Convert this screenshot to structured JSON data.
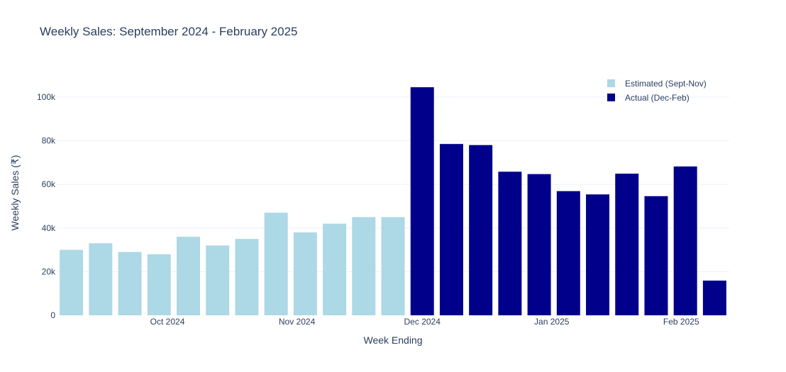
{
  "chart_data": {
    "type": "bar",
    "title": "Weekly Sales: September 2024 - February 2025",
    "xlabel": "Week Ending",
    "ylabel": "Weekly Sales (₹)",
    "ylim": [
      0,
      112000
    ],
    "y_ticks": [
      {
        "value": 0,
        "label": "0"
      },
      {
        "value": 20000,
        "label": "20k"
      },
      {
        "value": 40000,
        "label": "40k"
      },
      {
        "value": 60000,
        "label": "60k"
      },
      {
        "value": 80000,
        "label": "80k"
      },
      {
        "value": 100000,
        "label": "100k"
      }
    ],
    "x_ticks": [
      {
        "date": "2024-10-01",
        "label": "Oct 2024"
      },
      {
        "date": "2024-11-01",
        "label": "Nov 2024"
      },
      {
        "date": "2024-12-01",
        "label": "Dec 2024"
      },
      {
        "date": "2025-01-01",
        "label": "Jan 2025"
      },
      {
        "date": "2025-02-01",
        "label": "Feb 2025"
      }
    ],
    "grid": true,
    "legend_position": "top-right",
    "series": [
      {
        "name": "Estimated (Sept-Nov)",
        "color": "#add8e6",
        "points": [
          {
            "x": "2024-09-08",
            "y": 30000
          },
          {
            "x": "2024-09-15",
            "y": 33000
          },
          {
            "x": "2024-09-22",
            "y": 29000
          },
          {
            "x": "2024-09-29",
            "y": 28000
          },
          {
            "x": "2024-10-06",
            "y": 36000
          },
          {
            "x": "2024-10-13",
            "y": 32000
          },
          {
            "x": "2024-10-20",
            "y": 35000
          },
          {
            "x": "2024-10-27",
            "y": 47000
          },
          {
            "x": "2024-11-03",
            "y": 38000
          },
          {
            "x": "2024-11-10",
            "y": 42000
          },
          {
            "x": "2024-11-17",
            "y": 45000
          },
          {
            "x": "2024-11-24",
            "y": 45000
          }
        ]
      },
      {
        "name": "Actual (Dec-Feb)",
        "color": "#00008b",
        "points": [
          {
            "x": "2024-12-01",
            "y": 104500
          },
          {
            "x": "2024-12-08",
            "y": 78500
          },
          {
            "x": "2024-12-15",
            "y": 78000
          },
          {
            "x": "2024-12-22",
            "y": 65800
          },
          {
            "x": "2024-12-29",
            "y": 64700
          },
          {
            "x": "2025-01-05",
            "y": 56900
          },
          {
            "x": "2025-01-12",
            "y": 55400
          },
          {
            "x": "2025-01-19",
            "y": 64900
          },
          {
            "x": "2025-01-26",
            "y": 54600
          },
          {
            "x": "2025-02-02",
            "y": 68200
          },
          {
            "x": "2025-02-09",
            "y": 15900
          }
        ]
      }
    ]
  }
}
